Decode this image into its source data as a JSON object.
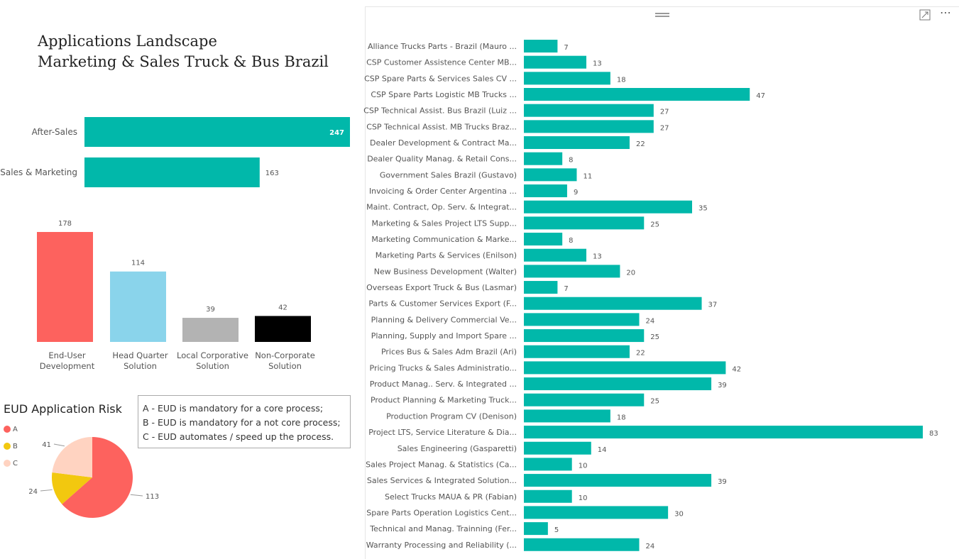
{
  "report": {
    "title_line1": "Applications Landscape",
    "title_line2": "Marketing & Sales Truck & Bus Brazil"
  },
  "colors": {
    "teal": "#01B8AA",
    "coral": "#FD625E",
    "light_blue": "#8AD4EB",
    "gray": "#B3B3B3",
    "black": "#000000",
    "yellow": "#F2C80F",
    "peach": "#FFD3C1"
  },
  "visual_header": {
    "focus_icon": "focus-mode-icon",
    "more_icon": "more-options-icon",
    "more_text": "⋯"
  },
  "notes": {
    "line1": "A - EUD is mandatory for a core process;",
    "line2": "B - EUD is mandatory for a not core process;",
    "line3": "C - EUD automates / speed up the process."
  },
  "pie_legend": {
    "title": "EUD Application Risk",
    "items": [
      {
        "label": "A",
        "color": "#FD625E"
      },
      {
        "label": "B",
        "color": "#F2C80F"
      },
      {
        "label": "C",
        "color": "#FFD3C1"
      }
    ]
  },
  "chart_data": [
    {
      "type": "bar",
      "orientation": "horizontal",
      "categories": [
        "After-Sales",
        "Sales & Marketing"
      ],
      "values": [
        247,
        163
      ],
      "xlim": [
        0,
        247
      ],
      "color": "#01B8AA",
      "grid": false
    },
    {
      "type": "bar",
      "orientation": "vertical",
      "categories": [
        "End-User Development",
        "Head Quarter Solution",
        "Local Corporative Solution",
        "Non-Corporate Solution"
      ],
      "category_lines": [
        [
          "End-User",
          "Development"
        ],
        [
          "Head Quarter",
          "Solution"
        ],
        [
          "Local Corporative",
          "Solution"
        ],
        [
          "Non-Corporate",
          "Solution"
        ]
      ],
      "values": [
        178,
        114,
        39,
        42
      ],
      "colors": [
        "#FD625E",
        "#8AD4EB",
        "#B3B3B3",
        "#000000"
      ],
      "ylim": [
        0,
        178
      ],
      "grid": false
    },
    {
      "type": "pie",
      "title": "EUD Application Risk",
      "categories": [
        "A",
        "B",
        "C"
      ],
      "values": [
        113,
        24,
        41
      ],
      "colors": [
        "#FD625E",
        "#F2C80F",
        "#FFD3C1"
      ],
      "legend": "left"
    },
    {
      "type": "bar",
      "orientation": "horizontal",
      "categories": [
        "Alliance Trucks Parts - Brazil (Mauro ...",
        "CSP Customer Assistence Center MB...",
        "CSP Spare Parts & Services Sales CV ...",
        "CSP Spare Parts Logistic MB Trucks ...",
        "CSP Technical Assist. Bus Brazil (Luiz ...",
        "CSP Technical Assist. MB Trucks Braz...",
        "Dealer Development & Contract Ma...",
        "Dealer Quality Manag. & Retail Cons...",
        "Government Sales Brazil (Gustavo)",
        "Invoicing & Order Center Argentina ...",
        "Maint. Contract, Op. Serv. & Integrat...",
        "Marketing & Sales Project LTS Supp...",
        "Marketing Communication & Marke...",
        "Marketing Parts & Services (Enilson)",
        "New Business Development (Walter)",
        "Overseas Export Truck & Bus (Lasmar)",
        "Parts & Customer Services Export (F...",
        "Planning & Delivery Commercial Ve...",
        "Planning, Supply and Import Spare ...",
        "Prices Bus & Sales Adm Brazil (Ari)",
        "Pricing Trucks & Sales Administratio...",
        "Product Manag.. Serv. & Integrated ...",
        "Product Planning & Marketing Truck...",
        "Production Program CV (Denison)",
        "Project LTS, Service Literature & Dia...",
        "Sales Engineering (Gasparetti)",
        "Sales Project Manag. & Statistics (Ca...",
        "Sales Services & Integrated Solution...",
        "Select Trucks MAUA & PR (Fabian)",
        "Spare Parts Operation Logistics Cent...",
        "Technical and Manag. Trainning (Fer...",
        "Warranty Processing and Reliability (..."
      ],
      "values": [
        7,
        13,
        18,
        47,
        27,
        27,
        22,
        8,
        11,
        9,
        35,
        25,
        8,
        13,
        20,
        7,
        37,
        24,
        25,
        22,
        42,
        39,
        25,
        18,
        83,
        14,
        10,
        39,
        10,
        30,
        5,
        24
      ],
      "xlim": [
        0,
        83
      ],
      "color": "#01B8AA",
      "grid": false
    }
  ]
}
